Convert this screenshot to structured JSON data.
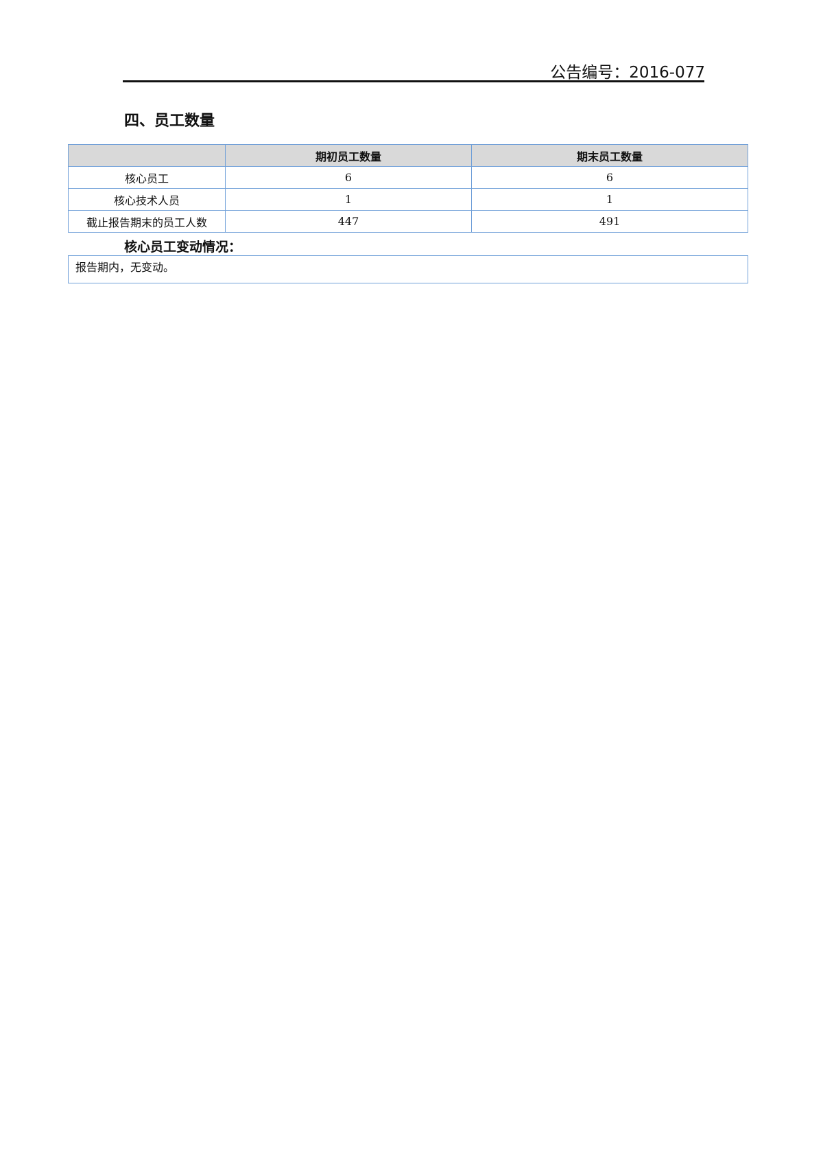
{
  "header": {
    "announcement_no": "公告编号：2016-077"
  },
  "section": {
    "title": "四、员工数量"
  },
  "table": {
    "columns": [
      "",
      "期初员工数量",
      "期末员工数量"
    ],
    "rows": [
      [
        "核心员工",
        "6",
        "6"
      ],
      [
        "核心技术人员",
        "1",
        "1"
      ],
      [
        "截止报告期末的员工人数",
        "447",
        "491"
      ]
    ]
  },
  "changes": {
    "title": "核心员工变动情况：",
    "text": "报告期内，无变动。"
  }
}
